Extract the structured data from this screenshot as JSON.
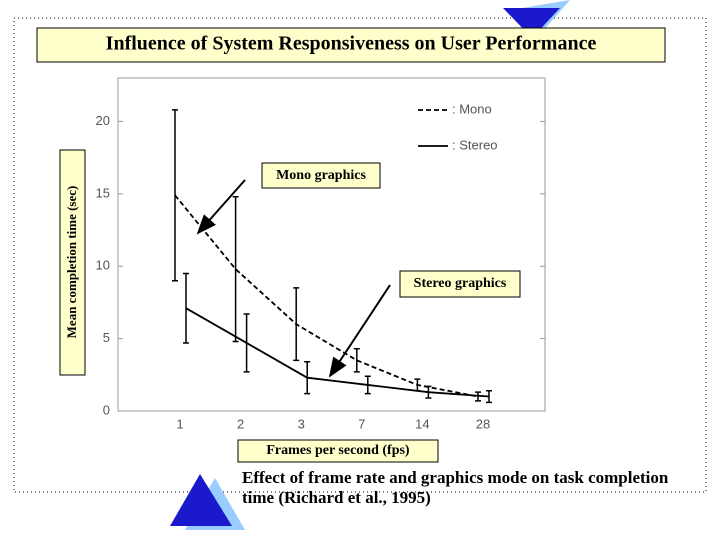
{
  "chart_data": {
    "type": "line",
    "title": "Influence of System Responsiveness on User Performance",
    "x_label": "Frames per second (fps)",
    "y_label": "Mean completion time (sec)",
    "categories": [
      "1",
      "2",
      "3",
      "7",
      "14",
      "28"
    ],
    "series": [
      {
        "name": ": Mono",
        "color": "#000000",
        "dash": true,
        "values": [
          14.9,
          9.8,
          6.0,
          3.5,
          1.8,
          1.0
        ],
        "errors": [
          5.9,
          5.0,
          2.5,
          0.8,
          0.4,
          0.3
        ]
      },
      {
        "name": ": Stereo",
        "color": "#000000",
        "dash": false,
        "values": [
          7.1,
          4.7,
          2.3,
          1.8,
          1.3,
          1.0
        ],
        "errors": [
          2.4,
          2.0,
          1.1,
          0.6,
          0.4,
          0.4
        ]
      }
    ],
    "ylim": [
      0,
      23
    ],
    "yticks": [
      0,
      5,
      10,
      15,
      20
    ],
    "grid": false,
    "annotations": [
      "Mono graphics",
      "Stereo graphics"
    ],
    "caption": "Effect of frame rate and graphics mode on task completion time (Richard et al., 1995)"
  }
}
